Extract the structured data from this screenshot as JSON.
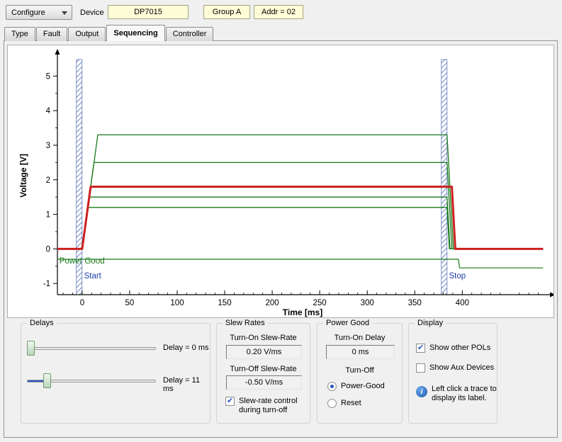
{
  "toolbar": {
    "configure_label": "Configure",
    "device_label": "Device",
    "device_value": "DP7015",
    "group_value": "Group A",
    "addr_value": "Addr = 02"
  },
  "tabs": [
    {
      "label": "Type",
      "active": false
    },
    {
      "label": "Fault",
      "active": false
    },
    {
      "label": "Output",
      "active": false
    },
    {
      "label": "Sequencing",
      "active": true
    },
    {
      "label": "Controller",
      "active": false
    }
  ],
  "chart_data": {
    "type": "line",
    "xlabel": "Time [ms]",
    "ylabel": "Voltage [V]",
    "xlim": [
      -26,
      490
    ],
    "ylim": [
      -1.16,
      5.48
    ],
    "x_ticks": [
      0,
      50,
      100,
      150,
      200,
      250,
      300,
      350,
      400
    ],
    "y_ticks": [
      -1,
      0,
      1,
      2,
      3,
      4,
      5
    ],
    "grid": false,
    "markers": [
      {
        "name": "start",
        "x0": -6,
        "x1": 0,
        "hatch_color": "#4a66b0"
      },
      {
        "name": "stop",
        "x0": 378,
        "x1": 384,
        "hatch_color": "#4a66b0"
      }
    ],
    "series": [
      {
        "name": "rail-3.3V",
        "color": "#1a7a1a",
        "width": 1.3,
        "points": [
          [
            -26,
            0
          ],
          [
            0,
            0
          ],
          [
            16.5,
            3.3
          ],
          [
            384,
            3.3
          ],
          [
            390.6,
            0
          ],
          [
            485,
            0
          ]
        ]
      },
      {
        "name": "rail-2.5V",
        "color": "#1a7a1a",
        "width": 1.3,
        "points": [
          [
            -26,
            0
          ],
          [
            0,
            0
          ],
          [
            12.5,
            2.5
          ],
          [
            384,
            2.5
          ],
          [
            389,
            0
          ],
          [
            485,
            0
          ]
        ]
      },
      {
        "name": "rail-1.5V",
        "color": "#1a7a1a",
        "width": 1.3,
        "points": [
          [
            -26,
            0
          ],
          [
            0,
            0
          ],
          [
            7.5,
            1.5
          ],
          [
            384,
            1.5
          ],
          [
            387,
            0
          ],
          [
            485,
            0
          ]
        ]
      },
      {
        "name": "rail-1.2V",
        "color": "#1a7a1a",
        "width": 1.3,
        "points": [
          [
            -26,
            0
          ],
          [
            0,
            0
          ],
          [
            6,
            1.2
          ],
          [
            384,
            1.2
          ],
          [
            386.4,
            0
          ],
          [
            485,
            0
          ]
        ]
      },
      {
        "name": "selected-rail-1.8V",
        "color": "#cc1f1f",
        "width": 3,
        "points": [
          [
            -26,
            0
          ],
          [
            0,
            0
          ],
          [
            9,
            1.8
          ],
          [
            389,
            1.8
          ],
          [
            392.6,
            0
          ],
          [
            485,
            0
          ]
        ]
      },
      {
        "name": "power-good",
        "color": "#1a7a1a",
        "width": 1.2,
        "points": [
          [
            -26,
            -0.3
          ],
          [
            396,
            -0.3
          ],
          [
            397,
            -0.55
          ],
          [
            485,
            -0.55
          ]
        ]
      }
    ],
    "annotations": [
      {
        "text": "Power Good",
        "t": -24,
        "v": -0.42,
        "color": "#1a7a1a"
      },
      {
        "text": "Start",
        "t": 2,
        "v": -0.85,
        "color": "#1e3faa"
      },
      {
        "text": "Stop",
        "t": 386,
        "v": -0.85,
        "color": "#1e3faa"
      }
    ]
  },
  "delays": {
    "title": "Delays",
    "sliders": [
      {
        "label": "Delay = 0 ms",
        "value": 0
      },
      {
        "label": "Delay = 11 ms",
        "value": 11
      }
    ]
  },
  "slew_rates": {
    "title": "Slew Rates",
    "turn_on_label": "Turn-On Slew-Rate",
    "turn_on_value": "0.20 V/ms",
    "turn_off_label": "Turn-Off Slew-Rate",
    "turn_off_value": "-0.50 V/ms",
    "checkbox_label": "Slew-rate control during turn-off",
    "checkbox_checked": true
  },
  "power_good": {
    "title": "Power Good",
    "turn_on_delay_label": "Turn-On Delay",
    "turn_on_delay_value": "0 ms",
    "turn_off_label": "Turn-Off",
    "options": [
      {
        "label": "Power-Good",
        "selected": true
      },
      {
        "label": "Reset",
        "selected": false
      }
    ]
  },
  "display": {
    "title": "Display",
    "checkboxes": [
      {
        "label": "Show other POLs",
        "checked": true
      },
      {
        "label": "Show Aux Devices",
        "checked": false
      }
    ],
    "info_text": "Left click a trace to display its label."
  }
}
